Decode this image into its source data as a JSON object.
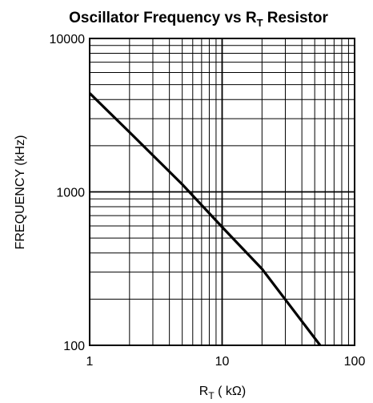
{
  "chart_data": {
    "type": "line",
    "title": {
      "main": "Oscillator Frequency vs R",
      "subscript": "T",
      "suffix": " Resistor"
    },
    "xlabel": {
      "main": "R",
      "subscript": "T",
      "suffix": " ( kΩ)"
    },
    "ylabel": "FREQUENCY (kHz)",
    "x_scale": "log",
    "y_scale": "log",
    "xlim": [
      1,
      100
    ],
    "ylim": [
      100,
      10000
    ],
    "x_ticks": [
      {
        "value": 1,
        "label": "1"
      },
      {
        "value": 10,
        "label": "10"
      },
      {
        "value": 100,
        "label": "100"
      }
    ],
    "y_ticks": [
      {
        "value": 100,
        "label": "100"
      },
      {
        "value": 1000,
        "label": "1000"
      },
      {
        "value": 10000,
        "label": "10000"
      }
    ],
    "grid": true,
    "color": "#000000",
    "series": [
      {
        "x": [
          1,
          2,
          5,
          10,
          20,
          55
        ],
        "y": [
          4400,
          2450,
          1120,
          590,
          315,
          100
        ]
      }
    ]
  }
}
